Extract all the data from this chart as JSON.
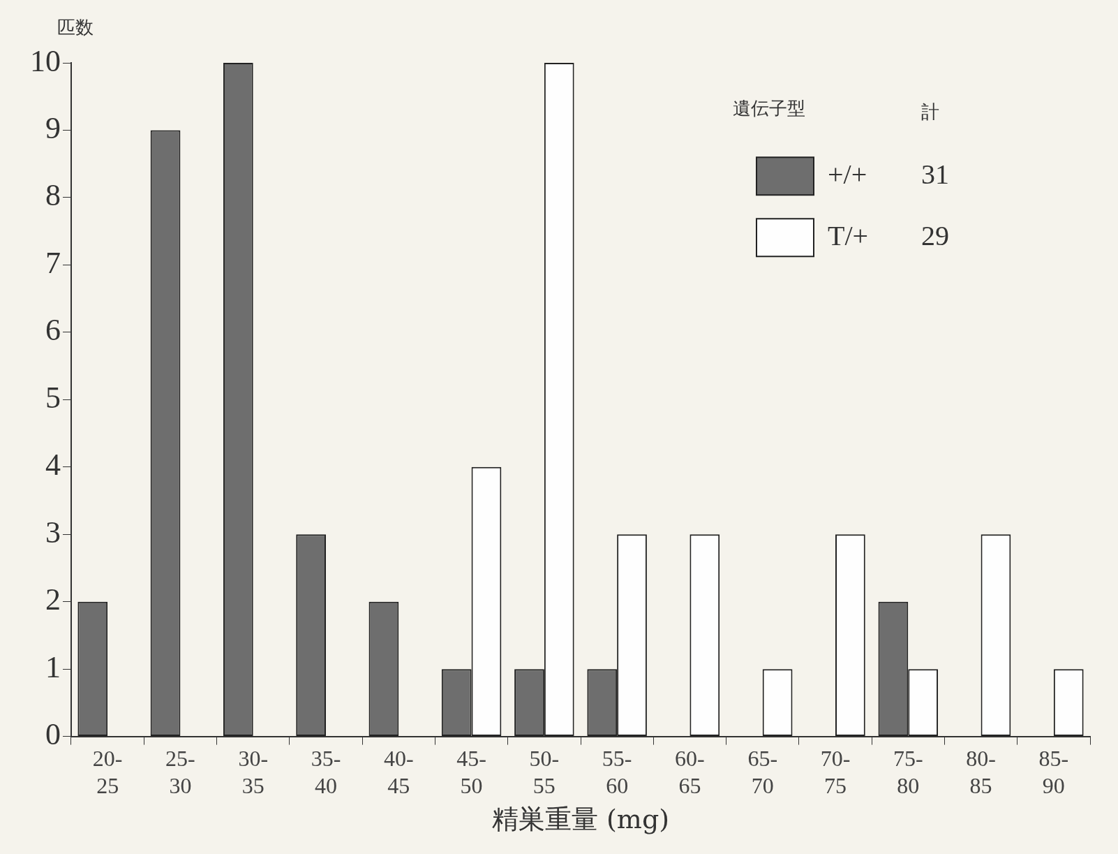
{
  "chart_data": {
    "type": "bar",
    "ylabel": "匹数",
    "xlabel": "精巣重量 (mg)",
    "legend_title": "遺伝子型",
    "legend": "top right",
    "grid": false,
    "categories": [
      "20-\n25",
      "25-\n30",
      "30-\n35",
      "35-\n40",
      "40-\n45",
      "45-\n50",
      "50-\n55",
      "55-\n60",
      "60-\n65",
      "65-\n70",
      "70-\n75",
      "75-\n80",
      "80-\n85",
      "85-\n90"
    ],
    "series": [
      {
        "name": "+/+",
        "color": "#6e6e6e",
        "values": [
          2,
          9,
          10,
          3,
          2,
          1,
          1,
          1,
          0,
          0,
          0,
          2,
          0,
          0
        ]
      },
      {
        "name": "T/+",
        "color": "#fefefe",
        "values": [
          0,
          0,
          0,
          0,
          0,
          4,
          10,
          3,
          3,
          1,
          3,
          1,
          3,
          1
        ]
      }
    ],
    "annotations": [
      "計",
      "31",
      "29"
    ],
    "ylim": [
      0,
      10
    ],
    "yticks": [
      0,
      1,
      2,
      3,
      4,
      5,
      6,
      7,
      8,
      9,
      10
    ]
  }
}
